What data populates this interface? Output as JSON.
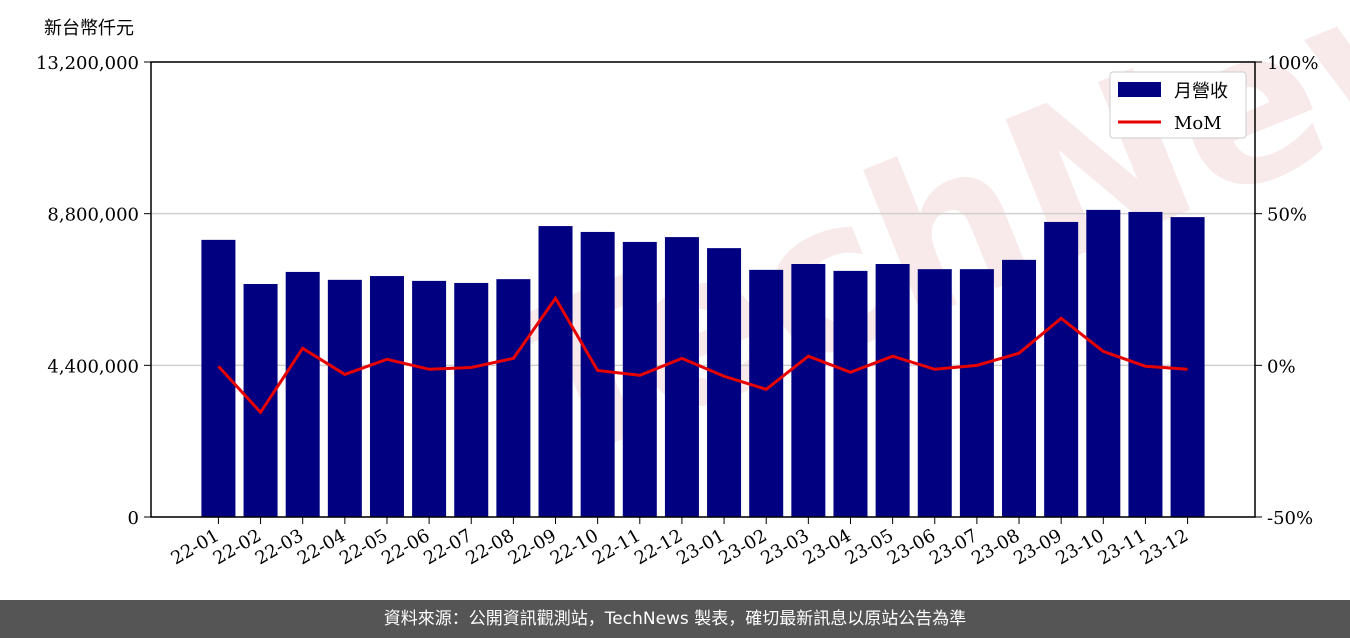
{
  "chart_data": {
    "type": "bar-line",
    "ylabel": "新台幣仟元",
    "watermark": "TechNews",
    "footer": "資料來源：公開資訊觀測站，TechNews 製表，確切最新訊息以原站公告為準",
    "categories": [
      "22-01",
      "22-02",
      "22-03",
      "22-04",
      "22-05",
      "22-06",
      "22-07",
      "22-08",
      "22-09",
      "22-10",
      "22-11",
      "22-12",
      "23-01",
      "23-02",
      "23-03",
      "23-04",
      "23-05",
      "23-06",
      "23-07",
      "23-08",
      "23-09",
      "23-10",
      "23-11",
      "23-12"
    ],
    "series": [
      {
        "name": "月營收",
        "type": "bar",
        "color": "#000080",
        "values": [
          8040000,
          6760000,
          7110000,
          6880000,
          6990000,
          6850000,
          6790000,
          6900000,
          8440000,
          8270000,
          7980000,
          8120000,
          7800000,
          7170000,
          7340000,
          7140000,
          7340000,
          7190000,
          7190000,
          7460000,
          8560000,
          8910000,
          8850000,
          8700000
        ]
      },
      {
        "name": "MoM",
        "type": "line",
        "axis": "y2",
        "color": "#e60000",
        "values": [
          -0.3,
          -15.5,
          5.6,
          -3.0,
          2.0,
          -1.3,
          -0.7,
          2.3,
          22.1,
          -1.7,
          -3.3,
          2.3,
          -3.6,
          -7.9,
          3.0,
          -2.3,
          3.0,
          -1.3,
          0,
          4.0,
          15.5,
          4.6,
          -0.3,
          -1.3
        ]
      }
    ],
    "ylim": [
      0,
      13200000
    ],
    "yticks": [
      0,
      {
        "value": 4400000,
        "label": "4,400,000"
      },
      {
        "value": 8800000,
        "label": "8,800,000"
      },
      {
        "value": 13200000,
        "label": "13,200,000"
      }
    ],
    "y2lim": [
      -50,
      100
    ],
    "y2ticks": [
      {
        "value": -50,
        "label": "-50%"
      },
      {
        "value": 0,
        "label": "0%"
      },
      {
        "value": 50,
        "label": "50%"
      },
      {
        "value": 100,
        "label": "100%"
      }
    ],
    "grid": true,
    "legend": "upper right"
  }
}
